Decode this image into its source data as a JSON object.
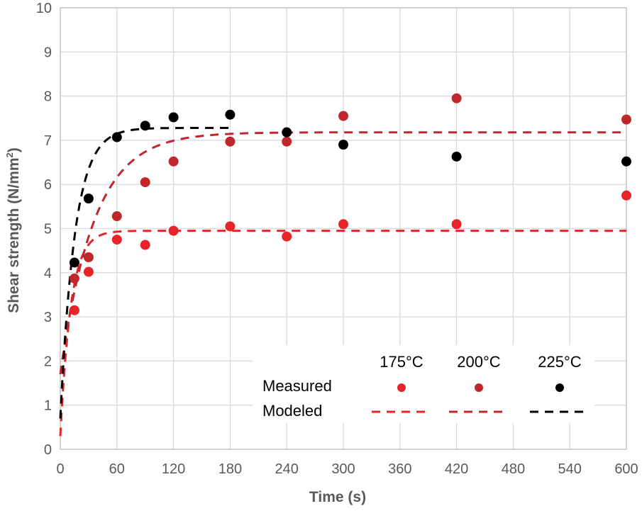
{
  "chart_data": {
    "type": "scatter",
    "xlabel": "Time (s)",
    "ylabel": "Shear strength (N/mm",
    "ylabel_sup": "2",
    "ylabel_close": ")",
    "xlim": [
      0,
      600
    ],
    "ylim": [
      0,
      10
    ],
    "xticks": [
      0,
      60,
      120,
      180,
      240,
      300,
      360,
      420,
      480,
      540,
      600
    ],
    "yticks": [
      0,
      1,
      2,
      3,
      4,
      5,
      6,
      7,
      8,
      9,
      10
    ],
    "grid": true,
    "legend_position": "bottom-right",
    "legend": {
      "row_labels": [
        "Measured",
        "Modeled"
      ],
      "column_labels": [
        "175°C",
        "200°C",
        "225°C"
      ]
    },
    "series": [
      {
        "name": "175°C",
        "color": "#e8232a",
        "measured": [
          {
            "x": 15,
            "y": 3.15
          },
          {
            "x": 30,
            "y": 4.02
          },
          {
            "x": 60,
            "y": 4.75
          },
          {
            "x": 90,
            "y": 4.63
          },
          {
            "x": 120,
            "y": 4.95
          },
          {
            "x": 180,
            "y": 5.05
          },
          {
            "x": 240,
            "y": 4.82
          },
          {
            "x": 300,
            "y": 5.1
          },
          {
            "x": 420,
            "y": 5.1
          },
          {
            "x": 600,
            "y": 5.75
          }
        ],
        "model": {
          "y0": 0.3,
          "ymax": 4.95,
          "k": 0.09,
          "x_end": 600
        }
      },
      {
        "name": "200°C",
        "color": "#c0272d",
        "measured": [
          {
            "x": 15,
            "y": 3.87
          },
          {
            "x": 30,
            "y": 4.35
          },
          {
            "x": 60,
            "y": 5.28
          },
          {
            "x": 90,
            "y": 6.05
          },
          {
            "x": 120,
            "y": 6.52
          },
          {
            "x": 180,
            "y": 6.97
          },
          {
            "x": 240,
            "y": 6.97
          },
          {
            "x": 300,
            "y": 7.55
          },
          {
            "x": 420,
            "y": 7.95
          },
          {
            "x": 600,
            "y": 7.47
          }
        ],
        "model": {
          "y0": 1.7,
          "ymax": 7.18,
          "k": 0.028,
          "x_end": 600
        }
      },
      {
        "name": "225°C",
        "color": "#000000",
        "measured": [
          {
            "x": 15,
            "y": 4.23
          },
          {
            "x": 30,
            "y": 5.68
          },
          {
            "x": 60,
            "y": 7.07
          },
          {
            "x": 90,
            "y": 7.33
          },
          {
            "x": 120,
            "y": 7.52
          },
          {
            "x": 180,
            "y": 7.58
          },
          {
            "x": 240,
            "y": 7.18
          },
          {
            "x": 300,
            "y": 6.9
          },
          {
            "x": 420,
            "y": 6.63
          },
          {
            "x": 600,
            "y": 6.52
          }
        ],
        "model": {
          "y0": 0.7,
          "ymax": 7.28,
          "k": 0.065,
          "x_end": 180
        }
      }
    ]
  }
}
